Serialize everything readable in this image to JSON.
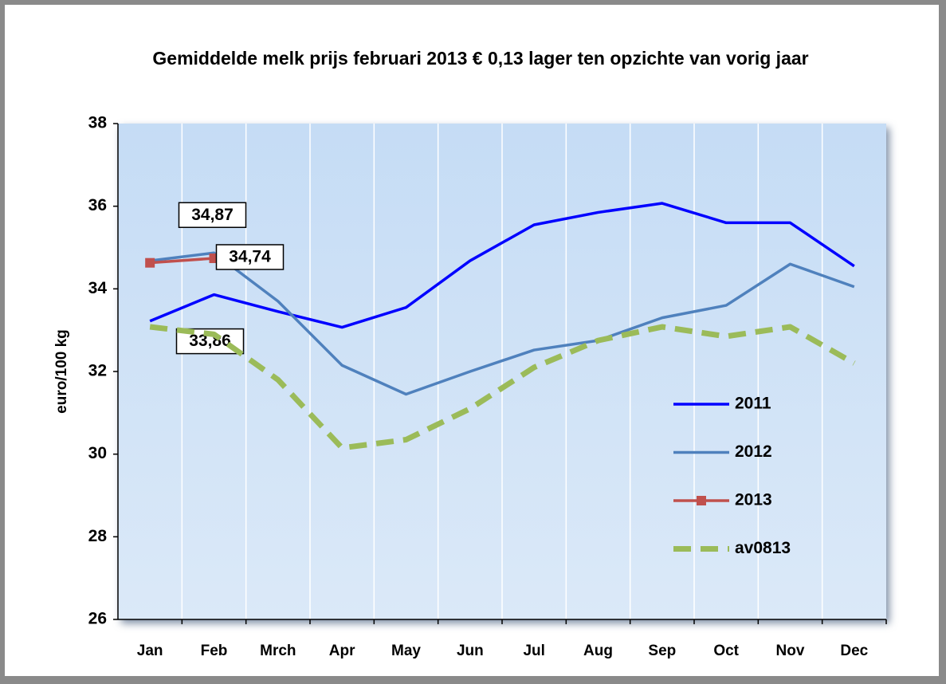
{
  "chart_data": {
    "type": "line",
    "title": "Gemiddelde melk prijs februari 2013 € 0,13 lager ten opzichte van vorig jaar",
    "y_label": "euro/100 kg",
    "categories": [
      "Jan",
      "Feb",
      "Mrch",
      "Apr",
      "May",
      "Jun",
      "Jul",
      "Aug",
      "Sep",
      "Oct",
      "Nov",
      "Dec"
    ],
    "series": [
      {
        "name": "2011",
        "color": "#0000ff",
        "values": [
          33.22,
          33.86,
          33.45,
          33.07,
          33.55,
          34.68,
          35.55,
          35.85,
          36.07,
          35.6,
          35.6,
          34.55
        ],
        "value_labels": [
          null,
          "33,86",
          null,
          null,
          null,
          null,
          null,
          null,
          null,
          null,
          null,
          null
        ]
      },
      {
        "name": "2012",
        "color": "#4f81bd",
        "values": [
          34.68,
          34.87,
          33.7,
          32.15,
          31.45,
          32.0,
          32.52,
          32.75,
          33.3,
          33.6,
          34.6,
          34.05
        ],
        "value_labels": [
          null,
          "34,87",
          null,
          null,
          null,
          null,
          null,
          null,
          null,
          null,
          null,
          null
        ]
      },
      {
        "name": "2013",
        "color": "#c0504d",
        "marker": "square",
        "values": [
          34.63,
          34.74,
          null,
          null,
          null,
          null,
          null,
          null,
          null,
          null,
          null,
          null
        ],
        "value_labels": [
          null,
          "34,74",
          null,
          null,
          null,
          null,
          null,
          null,
          null,
          null,
          null,
          null
        ]
      },
      {
        "name": "av0813",
        "color": "#9bbb59",
        "dashed": true,
        "values": [
          33.08,
          32.9,
          31.8,
          30.15,
          30.35,
          31.1,
          32.1,
          32.75,
          33.08,
          32.85,
          33.08,
          32.2
        ]
      }
    ],
    "ylim": [
      26,
      38
    ],
    "yticks": [
      26,
      28,
      30,
      32,
      34,
      36,
      38
    ],
    "grid": true
  }
}
